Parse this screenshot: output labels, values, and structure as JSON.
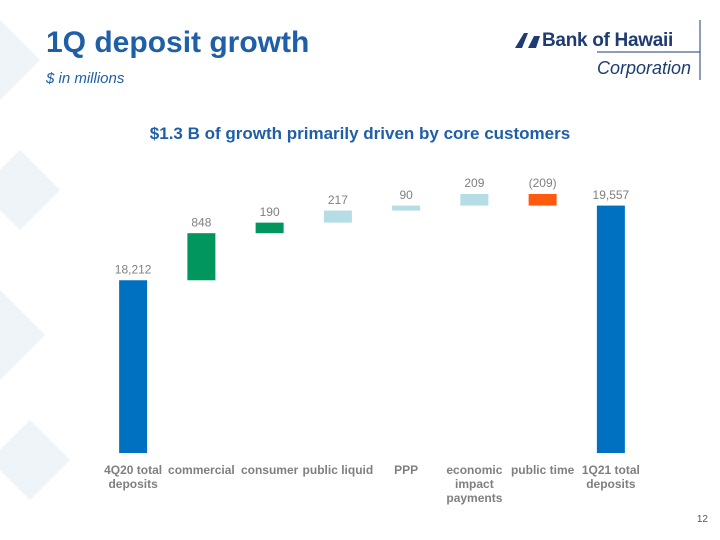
{
  "chart_data": {
    "type": "waterfall",
    "title": "1Q deposit growth",
    "subtitle": "$ in millions",
    "annotation": "$1.3 B of growth primarily driven by core customers",
    "logo": {
      "name": "Bank of Hawaii",
      "suffix": "Corporation"
    },
    "page_number": "12",
    "categories": [
      "4Q20 total deposits",
      "commercial",
      "consumer",
      "public liquid",
      "PPP",
      "economic impact payments",
      "public time",
      "1Q21 total deposits"
    ],
    "values": [
      18212,
      848,
      190,
      217,
      90,
      209,
      -209,
      19557
    ],
    "value_labels": [
      "18,212",
      "848",
      "190",
      "217",
      "90",
      "209",
      "(209)",
      "19,557"
    ],
    "totals": [
      true,
      false,
      false,
      false,
      false,
      false,
      false,
      true
    ],
    "colors": [
      "#0070c0",
      "#00965e",
      "#00965e",
      "#b4dde6",
      "#b4dde6",
      "#b4dde6",
      "#ff5a0f",
      "#0070c0"
    ],
    "ylim": [
      15100,
      20000
    ]
  }
}
